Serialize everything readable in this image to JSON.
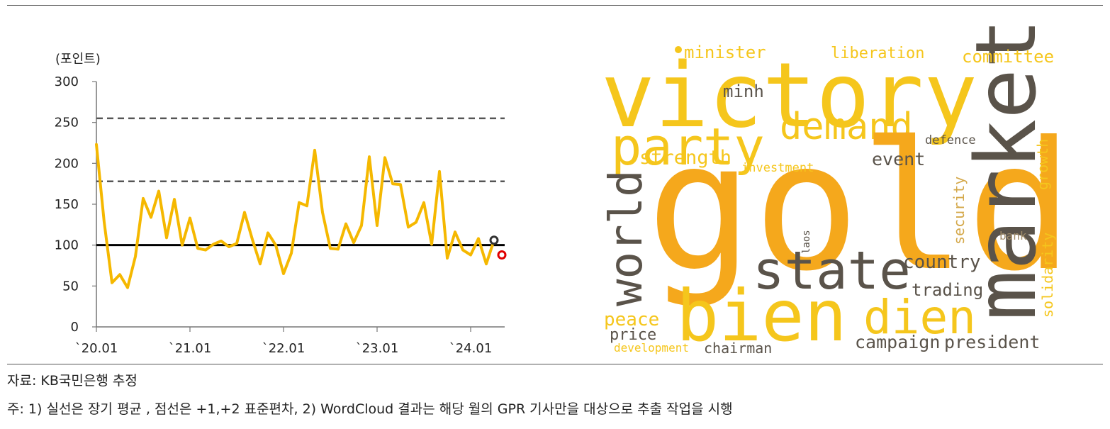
{
  "chart_data": {
    "type": "line",
    "yunit_label": "(포인트)",
    "yticks": [
      0,
      50,
      100,
      150,
      200,
      250,
      300
    ],
    "ylim": [
      0,
      300
    ],
    "xlim": [
      "2020-01",
      "2024-05"
    ],
    "xtick_labels": [
      "`20.01",
      "`21.01",
      "`22.01",
      "`23.01",
      "`24.01"
    ],
    "xtick_dates": [
      "2020-01",
      "2021-01",
      "2022-01",
      "2023-01",
      "2024-01"
    ],
    "series": [
      {
        "color": "#F5B800",
        "x": [
          "2020-01",
          "2020-02",
          "2020-03",
          "2020-04",
          "2020-05",
          "2020-06",
          "2020-07",
          "2020-08",
          "2020-09",
          "2020-10",
          "2020-11",
          "2020-12",
          "2021-01",
          "2021-02",
          "2021-03",
          "2021-04",
          "2021-05",
          "2021-06",
          "2021-07",
          "2021-08",
          "2021-09",
          "2021-10",
          "2021-11",
          "2021-12",
          "2022-01",
          "2022-02",
          "2022-03",
          "2022-04",
          "2022-05",
          "2022-06",
          "2022-07",
          "2022-08",
          "2022-09",
          "2022-10",
          "2022-11",
          "2022-12",
          "2023-01",
          "2023-02",
          "2023-03",
          "2023-04",
          "2023-05",
          "2023-06",
          "2023-07",
          "2023-08",
          "2023-09",
          "2023-10",
          "2023-11",
          "2023-12",
          "2024-01",
          "2024-02",
          "2024-03",
          "2024-04"
        ],
        "values": [
          223,
          128,
          54,
          64,
          48,
          86,
          157,
          134,
          166,
          109,
          156,
          100,
          133,
          96,
          94,
          101,
          105,
          98,
          102,
          140,
          107,
          77,
          115,
          100,
          65,
          90,
          152,
          148,
          216,
          140,
          96,
          95,
          126,
          103,
          124,
          208,
          124,
          207,
          175,
          174,
          122,
          128,
          152,
          101,
          190,
          84,
          116,
          94,
          88,
          108,
          77,
          106
        ]
      }
    ],
    "reference_lines": [
      {
        "y": 100,
        "style": "solid",
        "color": "#000000"
      },
      {
        "y": 178,
        "style": "dashed",
        "color": "#555555"
      },
      {
        "y": 255,
        "style": "dashed",
        "color": "#555555"
      }
    ],
    "markers": [
      {
        "x": "2024-04",
        "y": 106,
        "color": "#333333"
      },
      {
        "x": "2024-05",
        "y": 88,
        "color": "#E00000"
      }
    ]
  },
  "wordcloud": {
    "words": [
      {
        "text": "victory",
        "color": "#F5C61C"
      },
      {
        "text": "party",
        "color": "#F5C61C"
      },
      {
        "text": "demand",
        "color": "#F5C61C"
      },
      {
        "text": "gold",
        "color": "#F5A81C"
      },
      {
        "text": "market",
        "color": "#5A534A"
      },
      {
        "text": "world",
        "color": "#5A534A"
      },
      {
        "text": "state",
        "color": "#5A534A"
      },
      {
        "text": "bien",
        "color": "#F5C61C"
      },
      {
        "text": "dien",
        "color": "#F5C61C"
      },
      {
        "text": "minister",
        "color": "#F5C61C"
      },
      {
        "text": "liberation",
        "color": "#F5C61C"
      },
      {
        "text": "committee",
        "color": "#F5C61C"
      },
      {
        "text": "minh",
        "color": "#5A534A"
      },
      {
        "text": "strength",
        "color": "#F5C61C"
      },
      {
        "text": "investment",
        "color": "#F5C61C"
      },
      {
        "text": "event",
        "color": "#5A534A"
      },
      {
        "text": "defence",
        "color": "#5A534A"
      },
      {
        "text": "growth",
        "color": "#F5C61C"
      },
      {
        "text": "security",
        "color": "#D4A84A"
      },
      {
        "text": "bank",
        "color": "#A08C6A"
      },
      {
        "text": "solidarity",
        "color": "#F5C61C"
      },
      {
        "text": "laos",
        "color": "#5A534A"
      },
      {
        "text": "country",
        "color": "#5A534A"
      },
      {
        "text": "trading",
        "color": "#5A534A"
      },
      {
        "text": "peace",
        "color": "#F5C61C"
      },
      {
        "text": "price",
        "color": "#5A534A"
      },
      {
        "text": "development",
        "color": "#F5C61C"
      },
      {
        "text": "chairman",
        "color": "#5A534A"
      },
      {
        "text": "campaign",
        "color": "#5A534A"
      },
      {
        "text": "president",
        "color": "#5A534A"
      }
    ]
  },
  "notes": {
    "source": "자료: KB국민은행 추정",
    "footnote": "주: 1) 실선은 장기 평균 , 점선은 +1,+2 표준편차, 2) WordCloud 결과는 해당 월의 GPR 기사만을 대상으로 추출 작업을 시행"
  }
}
